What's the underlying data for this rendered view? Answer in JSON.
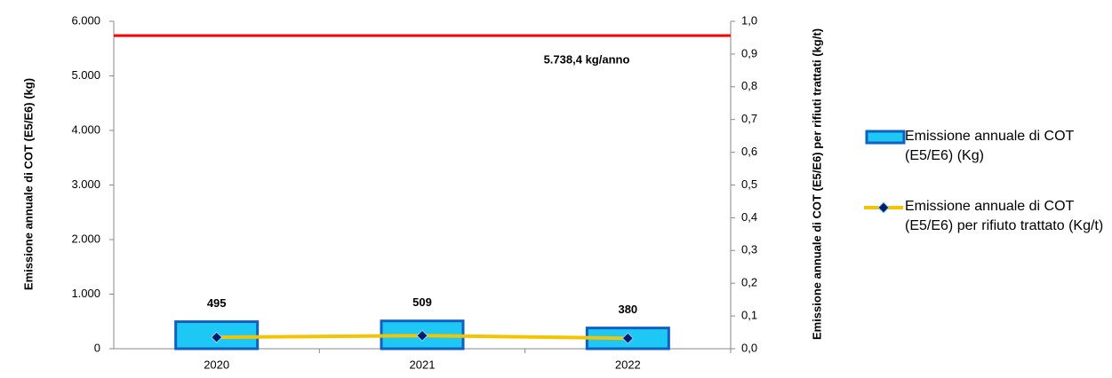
{
  "chart_data": {
    "type": "bar_line",
    "categories": [
      "2020",
      "2021",
      "2022"
    ],
    "series": [
      {
        "name": "Emissione annuale di COT (E5/E6) (Kg)",
        "type": "bar",
        "color": "#1ec8f5",
        "edge_color": "#1060c0",
        "values": [
          495,
          509,
          380
        ]
      },
      {
        "name": "Emissione annuale di COT (E5/E6) per rifiuto trattato (Kg/t)",
        "type": "line",
        "axis": "y2",
        "color": "#f5c400",
        "marker_color": "#0a1a6a",
        "values": [
          0.035,
          0.04,
          0.032
        ]
      }
    ],
    "ylabel": "Emissione annuale di COT (E5/E6) (kg)",
    "y2label": "Emissione annuale di COT (E5/E6) per rifiuti trattati (kg/t)",
    "ylim": [
      0,
      6000
    ],
    "yticks": [
      0,
      {
        "value": 1000,
        "label": "1.000"
      },
      {
        "value": 2000,
        "label": "2.000"
      },
      {
        "value": 3000,
        "label": "3.000"
      },
      {
        "value": 4000,
        "label": "4.000"
      },
      {
        "value": 5000,
        "label": "5.000"
      },
      {
        "value": 6000,
        "label": "6.000"
      }
    ],
    "y2lim": [
      0,
      1
    ],
    "y2ticks": [
      {
        "value": 0,
        "label": "0,0"
      },
      {
        "value": 0.1,
        "label": "0,1"
      },
      {
        "value": 0.2,
        "label": "0,2"
      },
      {
        "value": 0.3,
        "label": "0,3"
      },
      {
        "value": 0.4,
        "label": "0,4"
      },
      {
        "value": 0.5,
        "label": "0,5"
      },
      {
        "value": 0.6,
        "label": "0,6"
      },
      {
        "value": 0.7,
        "label": "0,7"
      },
      {
        "value": 0.8,
        "label": "0,8"
      },
      {
        "value": 0.9,
        "label": "0,9"
      },
      {
        "value": 1,
        "label": "1,0"
      }
    ],
    "reference_line": {
      "value": 5738.4,
      "label": "5.738,4 kg/anno",
      "color": "#ff0000"
    },
    "legend": "right"
  }
}
